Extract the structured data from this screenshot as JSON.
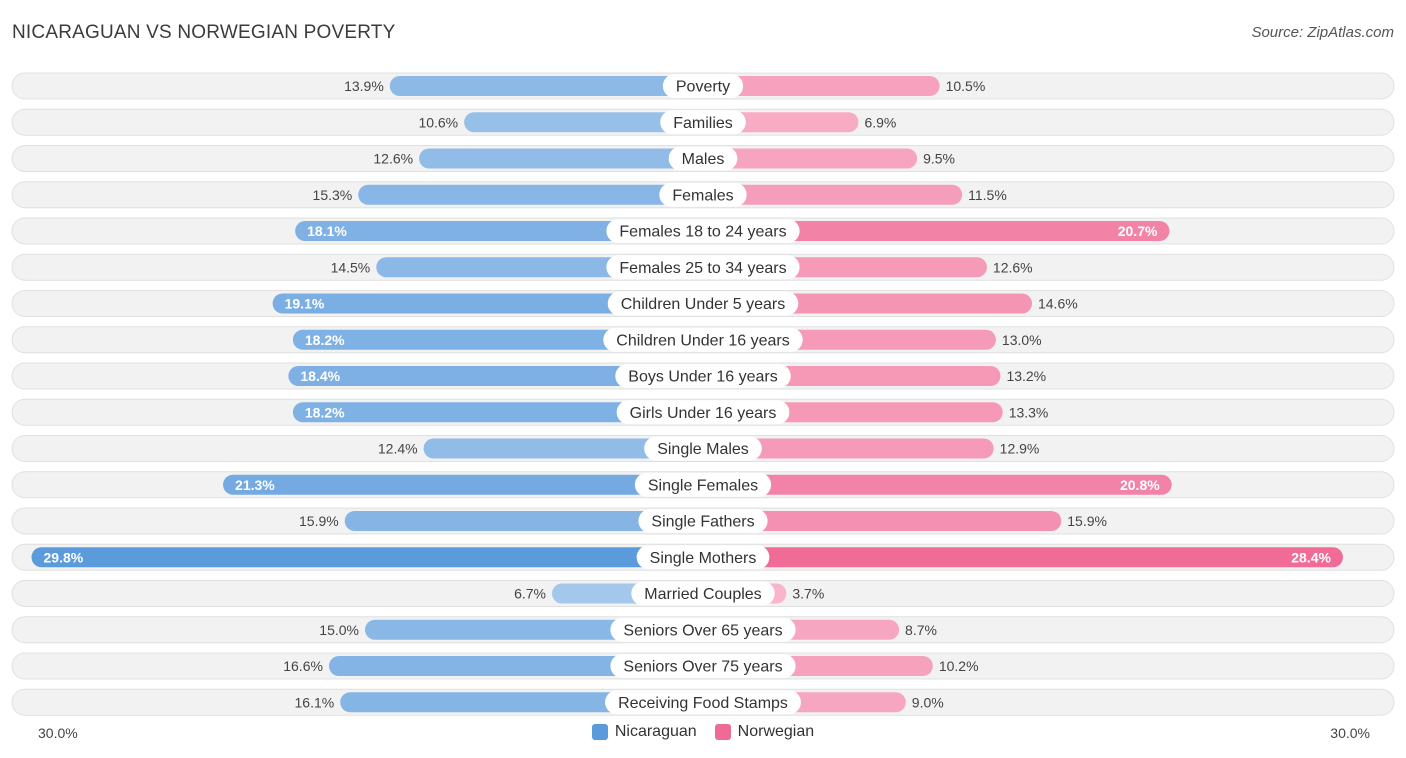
{
  "title": "NICARAGUAN VS NORWEGIAN POVERTY",
  "source": "Source: ZipAtlas.com",
  "colors": {
    "nicaraguan": "#5b9bdc",
    "norwegian": "#f06a96"
  },
  "axis": {
    "left_label": "30.0%",
    "right_label": "30.0%"
  },
  "legend": {
    "nicaraguan": "Nicaraguan",
    "norwegian": "Norwegian"
  },
  "chart_data": {
    "type": "bar",
    "orientation": "horizontal-diverging",
    "title": "NICARAGUAN VS NORWEGIAN POVERTY",
    "xlim": [
      -30,
      30
    ],
    "categories": [
      "Poverty",
      "Families",
      "Males",
      "Females",
      "Females 18 to 24 years",
      "Females 25 to 34 years",
      "Children Under 5 years",
      "Children Under 16 years",
      "Boys Under 16 years",
      "Girls Under 16 years",
      "Single Males",
      "Single Females",
      "Single Fathers",
      "Single Mothers",
      "Married Couples",
      "Seniors Over 65 years",
      "Seniors Over 75 years",
      "Receiving Food Stamps"
    ],
    "series": [
      {
        "name": "Nicaraguan",
        "values": [
          13.9,
          10.6,
          12.6,
          15.3,
          18.1,
          14.5,
          19.1,
          18.2,
          18.4,
          18.2,
          12.4,
          21.3,
          15.9,
          29.8,
          6.7,
          15.0,
          16.6,
          16.1
        ],
        "labels": [
          "13.9%",
          "10.6%",
          "12.6%",
          "15.3%",
          "18.1%",
          "14.5%",
          "19.1%",
          "18.2%",
          "18.4%",
          "18.2%",
          "12.4%",
          "21.3%",
          "15.9%",
          "29.8%",
          "6.7%",
          "15.0%",
          "16.6%",
          "16.1%"
        ]
      },
      {
        "name": "Norwegian",
        "values": [
          10.5,
          6.9,
          9.5,
          11.5,
          20.7,
          12.6,
          14.6,
          13.0,
          13.2,
          13.3,
          12.9,
          20.8,
          15.9,
          28.4,
          3.7,
          8.7,
          10.2,
          9.0
        ],
        "labels": [
          "10.5%",
          "6.9%",
          "9.5%",
          "11.5%",
          "20.7%",
          "12.6%",
          "14.6%",
          "13.0%",
          "13.2%",
          "13.3%",
          "12.9%",
          "20.8%",
          "15.9%",
          "28.4%",
          "3.7%",
          "8.7%",
          "10.2%",
          "9.0%"
        ]
      }
    ]
  }
}
